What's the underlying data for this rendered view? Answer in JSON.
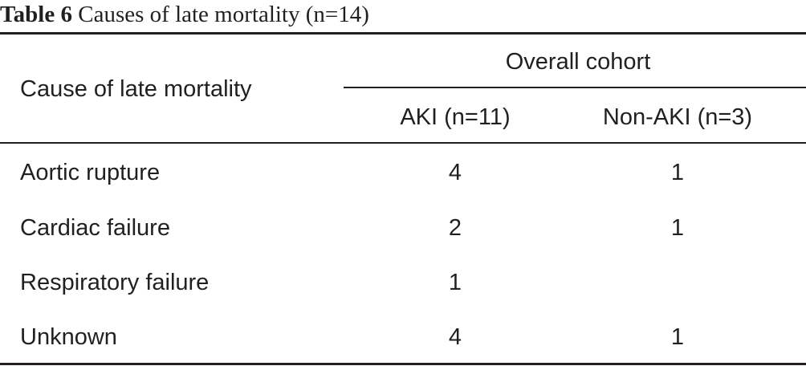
{
  "caption": {
    "label": "Table 6",
    "text": "Causes of late mortality (n=14)"
  },
  "header": {
    "row_header": "Cause of late mortality",
    "group": "Overall cohort",
    "columns": [
      "AKI (n=11)",
      "Non-AKI (n=3)"
    ]
  },
  "rows": [
    {
      "cause": "Aortic rupture",
      "aki": "4",
      "non_aki": "1"
    },
    {
      "cause": "Cardiac failure",
      "aki": "2",
      "non_aki": "1"
    },
    {
      "cause": "Respiratory failure",
      "aki": "1",
      "non_aki": ""
    },
    {
      "cause": "Unknown",
      "aki": "4",
      "non_aki": "1"
    }
  ]
}
